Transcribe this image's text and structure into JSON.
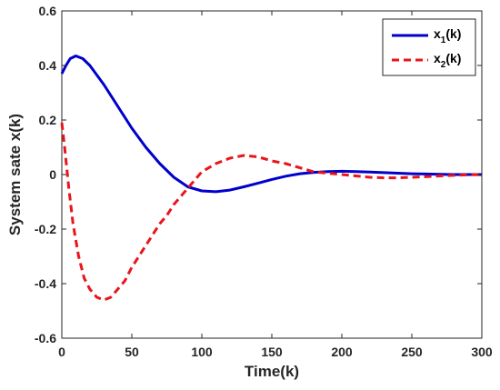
{
  "chart_data": {
    "type": "line",
    "xlabel": "Time(k)",
    "ylabel": "System sate x(k)",
    "xlim": [
      0,
      300
    ],
    "ylim": [
      -0.6,
      0.6
    ],
    "xticks": [
      "0",
      "50",
      "100",
      "150",
      "200",
      "250",
      "300"
    ],
    "yticks": [
      "0.6",
      "0.4",
      "0.2",
      "0",
      "-0.2",
      "-0.4",
      "-0.6"
    ],
    "legend_placement": "top-right",
    "grid": false,
    "series": [
      {
        "name": "x1(k)",
        "legend_main": "x",
        "legend_sub": "1",
        "legend_tail": "(k)",
        "color": "#0000cc",
        "style": "solid",
        "x": [
          0,
          3,
          6,
          10,
          15,
          20,
          30,
          40,
          50,
          60,
          70,
          80,
          90,
          100,
          110,
          120,
          130,
          140,
          150,
          160,
          170,
          180,
          190,
          200,
          210,
          220,
          230,
          240,
          250,
          260,
          270,
          280,
          290,
          300
        ],
        "y": [
          0.37,
          0.4,
          0.425,
          0.435,
          0.425,
          0.4,
          0.33,
          0.25,
          0.17,
          0.1,
          0.04,
          -0.01,
          -0.045,
          -0.06,
          -0.063,
          -0.057,
          -0.045,
          -0.032,
          -0.018,
          -0.006,
          0.003,
          0.008,
          0.011,
          0.012,
          0.011,
          0.009,
          0.007,
          0.005,
          0.003,
          0.002,
          0.001,
          0.0,
          0.0,
          0.0
        ]
      },
      {
        "name": "x2(k)",
        "legend_main": "x",
        "legend_sub": "2",
        "legend_tail": "(k)",
        "color": "#e8151b",
        "style": "dashed",
        "x": [
          0,
          2,
          5,
          8,
          12,
          16,
          20,
          25,
          30,
          35,
          40,
          45,
          50,
          55,
          60,
          65,
          70,
          75,
          80,
          85,
          90,
          95,
          100,
          110,
          120,
          130,
          140,
          150,
          160,
          170,
          180,
          190,
          200,
          210,
          220,
          230,
          240,
          250,
          260,
          270,
          280,
          290,
          300
        ],
        "y": [
          0.19,
          0.1,
          -0.05,
          -0.18,
          -0.3,
          -0.38,
          -0.42,
          -0.45,
          -0.46,
          -0.45,
          -0.42,
          -0.39,
          -0.34,
          -0.3,
          -0.26,
          -0.22,
          -0.18,
          -0.15,
          -0.11,
          -0.08,
          -0.05,
          -0.02,
          0.01,
          0.04,
          0.06,
          0.07,
          0.065,
          0.05,
          0.04,
          0.025,
          0.01,
          0.005,
          0.0,
          -0.005,
          -0.01,
          -0.012,
          -0.012,
          -0.01,
          -0.008,
          -0.005,
          -0.003,
          -0.001,
          0.0
        ]
      }
    ]
  }
}
